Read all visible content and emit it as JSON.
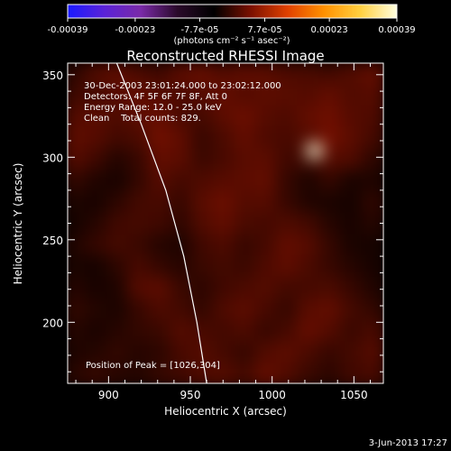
{
  "colorbar": {
    "tick_labels": [
      "-0.00039",
      "-0.00023",
      "-7.7e-05",
      "7.7e-05",
      "0.00023",
      "0.00039"
    ],
    "tick_values": [
      -0.00039,
      -0.00023,
      -7.7e-05,
      7.7e-05,
      0.00023,
      0.00039
    ],
    "range": [
      -0.00039,
      0.00039
    ],
    "units_label": "(photons cm⁻² s⁻¹ asec⁻²)",
    "colors": [
      "#1a1aff",
      "#5a22d8",
      "#7a2aa8",
      "#2a0a2a",
      "#000000",
      "#7a1000",
      "#e04000",
      "#ff9000",
      "#ffd040",
      "#ffffe0"
    ]
  },
  "annotations": {
    "time_range": "30-Dec-2003 23:01:24.000 to 23:02:12.000",
    "detectors": "Detectors: 4F 5F 6F 7F 8F, Att 0",
    "energy": "Energy Range: 12.0 - 25.0 keV",
    "clean_counts": "Clean    Total counts: 829.",
    "peak": "Position of Peak = [1026,304]"
  },
  "footer_date": "3-Jun-2013 17:27",
  "chart_data": {
    "type": "heatmap",
    "title": "Reconstructed RHESSI Image",
    "xlabel": "Heliocentric X (arcsec)",
    "ylabel": "Heliocentric Y (arcsec)",
    "xlim": [
      875,
      1068
    ],
    "ylim": [
      163,
      357
    ],
    "x_ticks": [
      900,
      950,
      1000,
      1050
    ],
    "y_ticks": [
      200,
      250,
      300,
      350
    ],
    "x_tick_labels": [
      "900",
      "950",
      "1000",
      "1050"
    ],
    "y_tick_labels": [
      "200",
      "250",
      "300",
      "350"
    ],
    "peak_position": [
      1026,
      304
    ],
    "limb_curve": [
      [
        905,
        357
      ],
      [
        920,
        320
      ],
      [
        935,
        280
      ],
      [
        946,
        240
      ],
      [
        954,
        200
      ],
      [
        960,
        163
      ]
    ],
    "grid_x": [
      880,
      893,
      906,
      919,
      932,
      945,
      958,
      971,
      984,
      997,
      1010,
      1023,
      1036,
      1049,
      1062
    ],
    "grid_y": [
      350,
      337,
      324,
      311,
      298,
      285,
      272,
      259,
      246,
      233,
      220,
      207,
      194,
      181,
      168
    ],
    "intensity_rows_ue5": [
      [
        -1.0,
        1.4,
        2.4,
        1.2,
        0.2,
        2.2,
        3.0,
        1.6,
        2.4,
        2.2,
        1.2,
        1.0,
        0.4,
        1.4,
        2.6
      ],
      [
        0.2,
        0.6,
        1.8,
        2.6,
        1.8,
        1.2,
        1.6,
        2.8,
        1.6,
        2.2,
        2.0,
        1.6,
        2.6,
        1.4,
        1.8
      ],
      [
        1.6,
        2.0,
        1.2,
        2.2,
        2.8,
        1.0,
        0.6,
        2.2,
        3.2,
        1.8,
        1.2,
        2.6,
        3.4,
        1.8,
        1.2
      ],
      [
        2.4,
        1.8,
        0.4,
        1.0,
        3.6,
        2.4,
        -0.4,
        1.0,
        2.6,
        1.2,
        0.8,
        1.8,
        3.8,
        2.2,
        0.6
      ],
      [
        1.8,
        0.2,
        -1.8,
        -0.4,
        2.6,
        2.2,
        -0.2,
        0.8,
        2.0,
        2.2,
        0.2,
        0.4,
        1.8,
        1.4,
        -1.0
      ],
      [
        -0.6,
        -2.0,
        -2.6,
        -0.8,
        1.8,
        0.6,
        1.2,
        1.8,
        2.2,
        2.6,
        -0.6,
        -2.2,
        -0.6,
        -2.4,
        -2.2
      ],
      [
        -2.2,
        -2.6,
        -1.2,
        0.4,
        0.8,
        -0.4,
        2.0,
        3.2,
        1.6,
        1.8,
        -0.4,
        -2.0,
        -2.4,
        -2.8,
        -1.0
      ],
      [
        -2.8,
        -1.6,
        0.2,
        0.6,
        0.2,
        -1.0,
        1.4,
        2.6,
        1.0,
        0.6,
        1.2,
        0.4,
        -1.6,
        -2.6,
        -1.6
      ],
      [
        -2.0,
        -0.6,
        0.6,
        -0.2,
        -1.6,
        -2.2,
        0.2,
        1.2,
        -0.4,
        0.6,
        2.6,
        1.8,
        -0.6,
        -2.4,
        -2.8
      ],
      [
        -2.4,
        -2.8,
        -1.2,
        0.8,
        -0.6,
        -1.6,
        -0.2,
        0.4,
        -0.2,
        1.2,
        2.4,
        1.0,
        -0.4,
        -1.6,
        -2.6
      ],
      [
        -1.6,
        -2.6,
        -2.2,
        1.6,
        2.2,
        -0.2,
        -1.2,
        0.2,
        1.0,
        1.6,
        0.4,
        0.6,
        1.0,
        -0.4,
        -2.0
      ],
      [
        -0.8,
        -1.8,
        -2.4,
        -0.4,
        1.2,
        0.4,
        -0.8,
        1.2,
        2.2,
        0.8,
        -0.6,
        2.0,
        2.6,
        0.6,
        -0.8
      ],
      [
        -1.6,
        -2.4,
        -1.6,
        -0.8,
        -0.2,
        1.6,
        0.8,
        0.4,
        1.2,
        -0.4,
        0.6,
        2.8,
        1.6,
        -0.2,
        0.8
      ],
      [
        -2.2,
        -1.8,
        -0.8,
        -1.6,
        -1.2,
        0.8,
        1.6,
        0.6,
        -0.6,
        1.4,
        2.2,
        1.0,
        -0.4,
        0.4,
        1.6
      ],
      [
        -1.4,
        -0.6,
        -1.4,
        -1.8,
        -0.6,
        0.2,
        1.2,
        1.6,
        0.4,
        2.6,
        1.4,
        -0.2,
        -1.2,
        0.2,
        0.8
      ]
    ]
  }
}
